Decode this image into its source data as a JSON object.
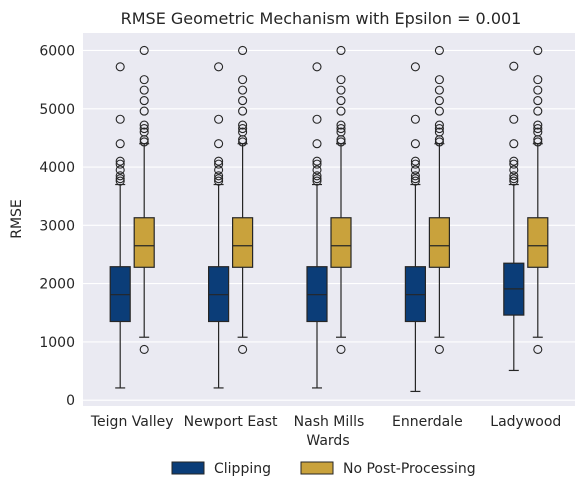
{
  "chart_data": {
    "type": "box",
    "title": "RMSE Geometric Mechanism with Epsilon = 0.001",
    "xlabel": "Wards",
    "ylabel": "RMSE",
    "ylim": [
      -100,
      6300
    ],
    "yticks": [
      0,
      1000,
      2000,
      3000,
      4000,
      5000,
      6000
    ],
    "grid": true,
    "legend_position": "bottom-center",
    "categories": [
      "Teign Valley",
      "Newport East",
      "Nash Mills",
      "Ennerdale",
      "Ladywood"
    ],
    "series": [
      {
        "name": "Clipping",
        "color": "#0b3d78",
        "boxes": [
          {
            "whislo": 210,
            "q1": 1350,
            "med": 1810,
            "q3": 2290,
            "whishi": 3700,
            "fliers": [
              3760,
              3800,
              3850,
              3950,
              4050,
              4100,
              4400,
              4820,
              5720
            ]
          },
          {
            "whislo": 210,
            "q1": 1350,
            "med": 1810,
            "q3": 2290,
            "whishi": 3700,
            "fliers": [
              3760,
              3800,
              3850,
              3950,
              4050,
              4100,
              4400,
              4820,
              5720
            ]
          },
          {
            "whislo": 210,
            "q1": 1350,
            "med": 1810,
            "q3": 2290,
            "whishi": 3700,
            "fliers": [
              3760,
              3800,
              3850,
              3950,
              4050,
              4100,
              4400,
              4820,
              5720
            ]
          },
          {
            "whislo": 150,
            "q1": 1350,
            "med": 1810,
            "q3": 2290,
            "whishi": 3700,
            "fliers": [
              3760,
              3800,
              3850,
              3950,
              4050,
              4100,
              4400,
              4820,
              5720
            ]
          },
          {
            "whislo": 510,
            "q1": 1460,
            "med": 1910,
            "q3": 2350,
            "whishi": 3700,
            "fliers": [
              3760,
              3800,
              3850,
              3950,
              4050,
              4100,
              4400,
              4820,
              5730
            ]
          }
        ]
      },
      {
        "name": "No Post-Processing",
        "color": "#c9a23c",
        "boxes": [
          {
            "whislo": 1080,
            "q1": 2280,
            "med": 2650,
            "q3": 3130,
            "whishi": 4400,
            "fliers": [
              870,
              4430,
              4470,
              4600,
              4660,
              4720,
              4960,
              5140,
              5320,
              5500,
              6000
            ]
          },
          {
            "whislo": 1080,
            "q1": 2280,
            "med": 2650,
            "q3": 3130,
            "whishi": 4400,
            "fliers": [
              870,
              4430,
              4470,
              4600,
              4660,
              4720,
              4960,
              5140,
              5320,
              5500,
              6000
            ]
          },
          {
            "whislo": 1080,
            "q1": 2280,
            "med": 2650,
            "q3": 3130,
            "whishi": 4400,
            "fliers": [
              870,
              4430,
              4470,
              4600,
              4660,
              4720,
              4960,
              5140,
              5320,
              5500,
              6000
            ]
          },
          {
            "whislo": 1080,
            "q1": 2280,
            "med": 2650,
            "q3": 3130,
            "whishi": 4400,
            "fliers": [
              870,
              4430,
              4470,
              4600,
              4660,
              4720,
              4960,
              5140,
              5320,
              5500,
              6000
            ]
          },
          {
            "whislo": 1080,
            "q1": 2280,
            "med": 2650,
            "q3": 3130,
            "whishi": 4400,
            "fliers": [
              870,
              4430,
              4470,
              4600,
              4660,
              4720,
              4960,
              5140,
              5320,
              5500,
              6000
            ]
          }
        ]
      }
    ],
    "legend": [
      "Clipping",
      "No Post-Processing"
    ]
  },
  "colors": {
    "plot_background": "#eaeaf2",
    "grid": "#ffffff",
    "line": "#262626"
  }
}
